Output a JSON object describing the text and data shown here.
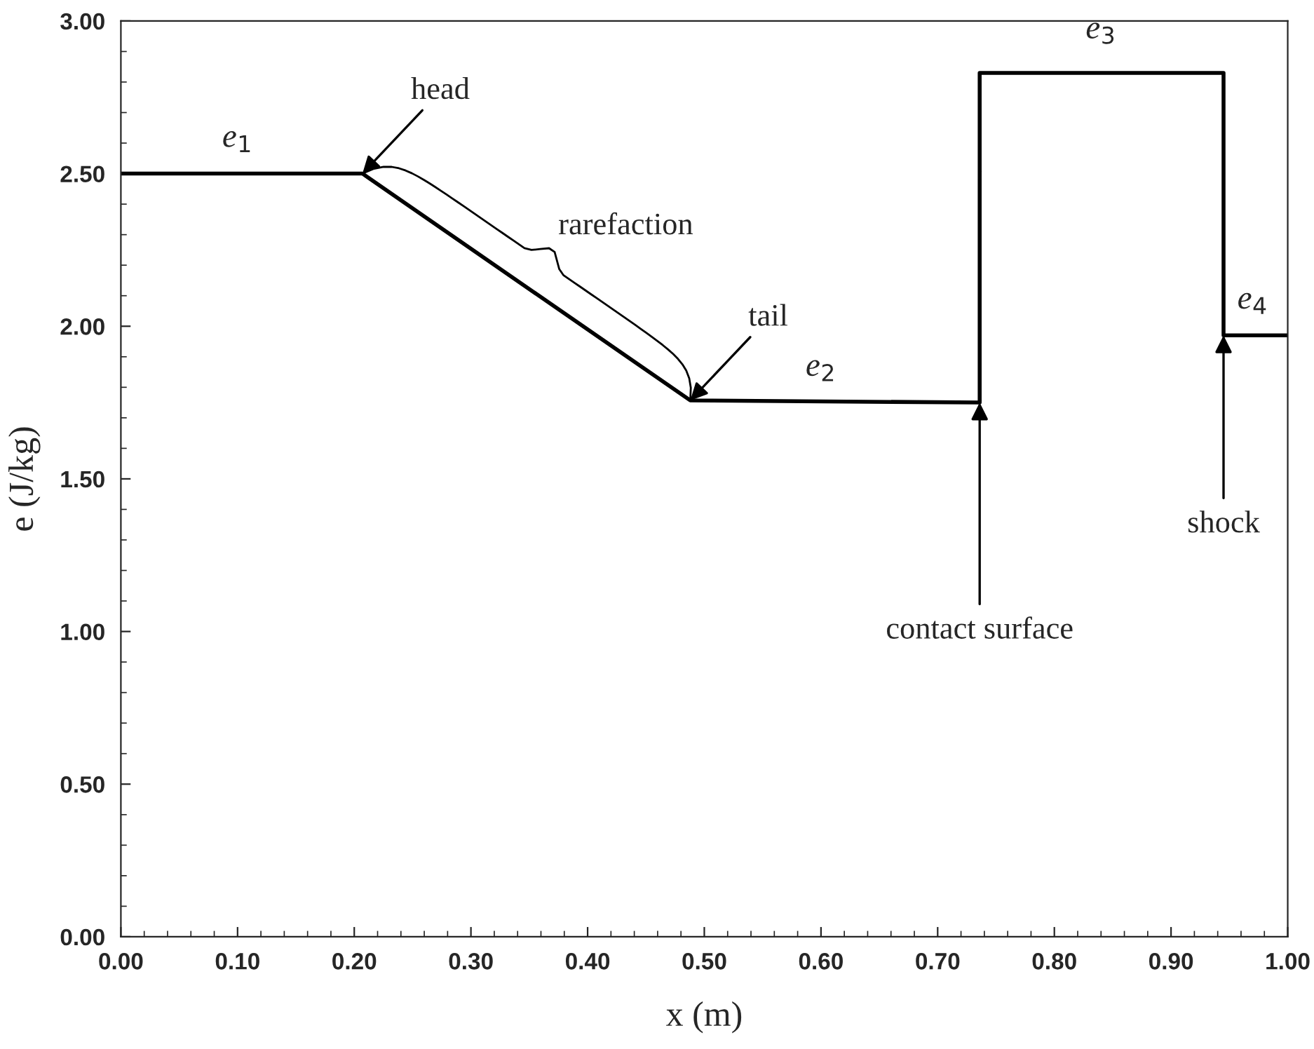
{
  "chart_data": {
    "type": "line",
    "x": [
      0.0,
      0.207,
      0.488,
      0.736,
      0.736,
      0.945,
      0.945,
      1.0
    ],
    "series": [
      {
        "color": "#000000",
        "values": [
          2.5,
          2.5,
          1.757,
          1.75,
          2.83,
          2.83,
          1.97,
          1.97
        ]
      }
    ],
    "xlabel": "x (m)",
    "ylabel": "e (J/kg)",
    "xlim": [
      0.0,
      1.0
    ],
    "ylim": [
      0.0,
      3.0
    ],
    "xticks": [
      {
        "value": 0.0,
        "label": "0.00"
      },
      {
        "value": 0.1,
        "label": "0.10"
      },
      {
        "value": 0.2,
        "label": "0.20"
      },
      {
        "value": 0.3,
        "label": "0.30"
      },
      {
        "value": 0.4,
        "label": "0.40"
      },
      {
        "value": 0.5,
        "label": "0.50"
      },
      {
        "value": 0.6,
        "label": "0.60"
      },
      {
        "value": 0.7,
        "label": "0.70"
      },
      {
        "value": 0.8,
        "label": "0.80"
      },
      {
        "value": 0.9,
        "label": "0.90"
      },
      {
        "value": 1.0,
        "label": "1.00"
      }
    ],
    "yticks": [
      {
        "value": 0.0,
        "label": "0.00"
      },
      {
        "value": 0.5,
        "label": "0.50"
      },
      {
        "value": 1.0,
        "label": "1.00"
      },
      {
        "value": 1.5,
        "label": "1.50"
      },
      {
        "value": 2.0,
        "label": "2.00"
      },
      {
        "value": 2.5,
        "label": "2.50"
      },
      {
        "value": 3.0,
        "label": "3.00"
      }
    ],
    "grid": false,
    "marker": "none",
    "line_style": "solid",
    "annotations": [
      {
        "text": "e$_{1}$",
        "x": 0.1,
        "y": 2.5
      },
      {
        "text": "e$_{2}$",
        "x": 0.6,
        "y": 1.75
      },
      {
        "text": "e$_{3}$",
        "x": 0.84,
        "y": 2.83
      },
      {
        "text": "e$_{4}$",
        "x": 0.97,
        "y": 1.97
      },
      {
        "text": "head",
        "x": 0.207,
        "y": 2.5
      },
      {
        "text": "rarefaction",
        "x": 0.35,
        "y": 2.13
      },
      {
        "text": "tail",
        "x": 0.488,
        "y": 1.757
      },
      {
        "text": "contact surface",
        "x": 0.736,
        "y": 1.75
      },
      {
        "text": "shock",
        "x": 0.945,
        "y": 1.97
      }
    ]
  }
}
